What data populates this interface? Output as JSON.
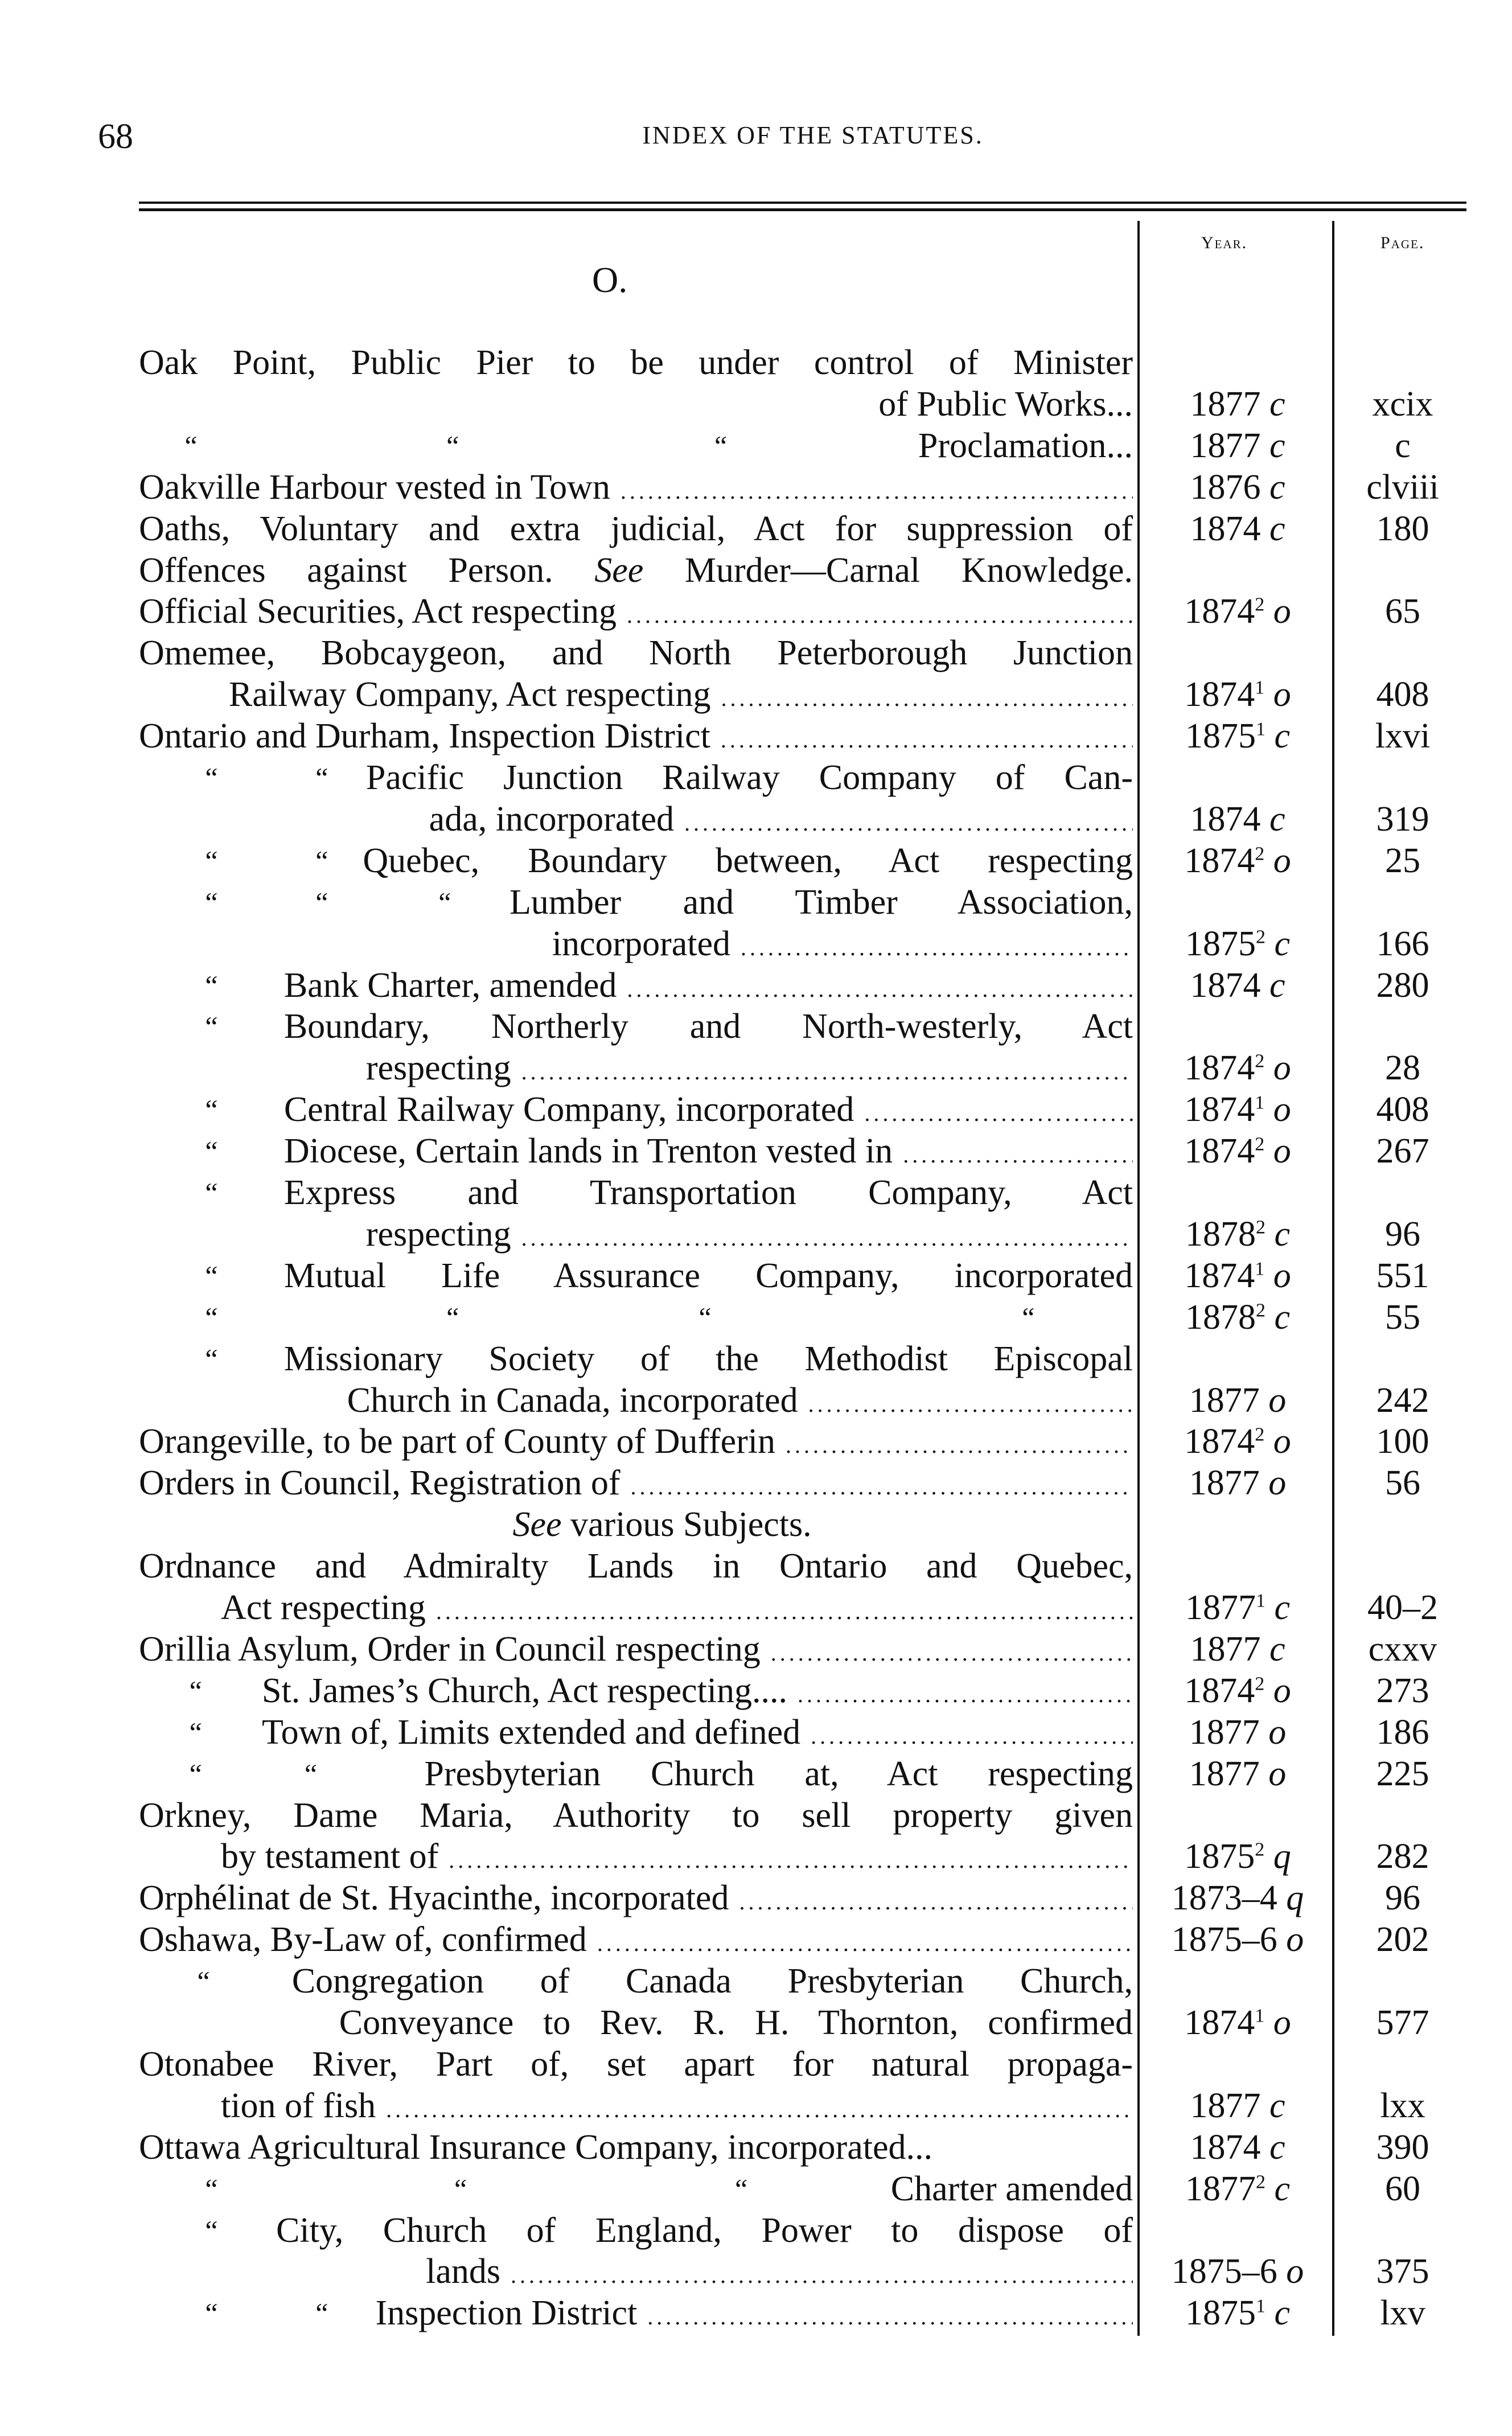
{
  "header": {
    "page_number": "68",
    "title": "INDEX OF THE STATUTES."
  },
  "columns": {
    "year": "Year.",
    "page": "Page."
  },
  "section_letter": "O.",
  "rows": [
    {
      "text": "Oak Point, Public Pier to be under control of Minister"
    },
    {
      "text": "of Public Works...",
      "year": "1877",
      "sup": "",
      "ch": "c",
      "page": "xcix"
    },
    {
      "dittos": [
        "“",
        "“",
        "“"
      ],
      "text": "Proclamation...",
      "year": "1877",
      "sup": "",
      "ch": "c",
      "page": "c"
    },
    {
      "text": "Oakville Harbour vested in Town",
      "year": "1876",
      "sup": "",
      "ch": "c",
      "page": "clviii"
    },
    {
      "text": "Oaths, Voluntary and extra judicial, Act for suppression of",
      "year": "1874",
      "sup": "",
      "ch": "c",
      "page": "180"
    },
    {
      "text": "Offences against Person.",
      "italic": "See",
      "text2": "Murder—Carnal Knowledge."
    },
    {
      "text": "Official Securities, Act respecting",
      "year": "1874",
      "sup": "2",
      "ch": "o",
      "page": "65"
    },
    {
      "text": "Omemee, Bobcaygeon, and North Peterborough Junction"
    },
    {
      "text": "Railway Company, Act respecting",
      "year": "1874",
      "sup": "1",
      "ch": "o",
      "page": "408"
    },
    {
      "text": "Ontario and Durham, Inspection District",
      "year": "1875",
      "sup": "1",
      "ch": "c",
      "page": "lxvi"
    },
    {
      "dittos": [
        "“",
        "“"
      ],
      "text": "Pacific Junction Railway Company of Can-"
    },
    {
      "text": "ada, incorporated",
      "year": "1874",
      "sup": "",
      "ch": "c",
      "page": "319"
    },
    {
      "dittos": [
        "“",
        "“"
      ],
      "text": "Quebec, Boundary between, Act respecting",
      "year": "1874",
      "sup": "2",
      "ch": "o",
      "page": "25"
    },
    {
      "dittos": [
        "“",
        "“",
        "“"
      ],
      "text": "Lumber and Timber Association,"
    },
    {
      "text": "incorporated",
      "year": "1875",
      "sup": "2",
      "ch": "c",
      "page": "166"
    },
    {
      "dittos": [
        "“"
      ],
      "text": "Bank Charter, amended",
      "year": "1874",
      "sup": "",
      "ch": "c",
      "page": "280"
    },
    {
      "dittos": [
        "“"
      ],
      "text": "Boundary, Northerly and North-westerly, Act"
    },
    {
      "text": "respecting",
      "year": "1874",
      "sup": "2",
      "ch": "o",
      "page": "28"
    },
    {
      "dittos": [
        "“"
      ],
      "text": "Central Railway Company, incorporated",
      "year": "1874",
      "sup": "1",
      "ch": "o",
      "page": "408"
    },
    {
      "dittos": [
        "“"
      ],
      "text": "Diocese, Certain lands in Trenton vested in",
      "year": "1874",
      "sup": "2",
      "ch": "o",
      "page": "267"
    },
    {
      "dittos": [
        "“"
      ],
      "text": "Express and Transportation Company, Act"
    },
    {
      "text": "respecting",
      "year": "1878",
      "sup": "2",
      "ch": "c",
      "page": "96"
    },
    {
      "dittos": [
        "“"
      ],
      "text": "Mutual Life Assurance Company, incorporated",
      "year": "1874",
      "sup": "1",
      "ch": "o",
      "page": "551"
    },
    {
      "dittos": [
        "“",
        "“",
        "“",
        "“"
      ],
      "text": "",
      "year": "1878",
      "sup": "2",
      "ch": "c",
      "page": "55"
    },
    {
      "dittos": [
        "“"
      ],
      "text": "Missionary Society of the Methodist Episcopal"
    },
    {
      "text": "Church in Canada, incorporated",
      "year": "1877",
      "sup": "",
      "ch": "o",
      "page": "242"
    },
    {
      "text": "Orangeville, to be part of County of Dufferin",
      "year": "1874",
      "sup": "2",
      "ch": "o",
      "page": "100"
    },
    {
      "text": "Orders in Council, Registration of",
      "year": "1877",
      "sup": "",
      "ch": "o",
      "page": "56"
    },
    {
      "text": "",
      "italic": "See",
      "text2": "various Subjects."
    },
    {
      "text": "Ordnance and Admiralty Lands in Ontario and Quebec,"
    },
    {
      "text": "Act respecting",
      "year": "1877",
      "sup": "1",
      "ch": "c",
      "page": "40–2"
    },
    {
      "text": "Orillia Asylum, Order in Council respecting",
      "year": "1877",
      "sup": "",
      "ch": "c",
      "page": "cxxv"
    },
    {
      "dittos": [
        "“"
      ],
      "text": "St. James’s Church, Act respecting....",
      "year": "1874",
      "sup": "2",
      "ch": "o",
      "page": "273"
    },
    {
      "dittos": [
        "“"
      ],
      "text": "Town of, Limits extended and defined",
      "year": "1877",
      "sup": "",
      "ch": "o",
      "page": "186"
    },
    {
      "dittos": [
        "“",
        "“"
      ],
      "text": "Presbyterian Church at, Act respecting",
      "year": "1877",
      "sup": "",
      "ch": "o",
      "page": "225"
    },
    {
      "text": "Orkney, Dame Maria, Authority to sell property given"
    },
    {
      "text": "by testament of",
      "year": "1875",
      "sup": "2",
      "ch": "q",
      "page": "282"
    },
    {
      "text": "Orphélinat de St. Hyacinthe, incorporated",
      "year": "1873–4",
      "sup": "",
      "ch": "q",
      "page": "96"
    },
    {
      "text": "Oshawa, By-Law of, confirmed",
      "year": "1875–6",
      "sup": "",
      "ch": "o",
      "page": "202"
    },
    {
      "dittos": [
        "“"
      ],
      "text": "Congregation of Canada Presbyterian Church,"
    },
    {
      "text": "Conveyance to Rev. R. H. Thornton, confirmed",
      "year": "1874",
      "sup": "1",
      "ch": "o",
      "page": "577"
    },
    {
      "text": "Otonabee River, Part of, set apart for natural propaga-"
    },
    {
      "text": "tion of fish",
      "year": "1877",
      "sup": "",
      "ch": "c",
      "page": "lxx"
    },
    {
      "text": "Ottawa Agricultural Insurance Company, incorporated...",
      "year": "1874",
      "sup": "",
      "ch": "c",
      "page": "390"
    },
    {
      "dittos": [
        "“",
        "“",
        "“"
      ],
      "text": "Charter amended",
      "year": "1877",
      "sup": "2",
      "ch": "c",
      "page": "60"
    },
    {
      "dittos": [
        "“"
      ],
      "text": "City, Church of England, Power to dispose of"
    },
    {
      "text": "lands",
      "year": "1875–6",
      "sup": "",
      "ch": "o",
      "page": "375"
    },
    {
      "dittos": [
        "“",
        "“"
      ],
      "text": "Inspection District",
      "year": "1875",
      "sup": "1",
      "ch": "c",
      "page": "lxv"
    }
  ]
}
